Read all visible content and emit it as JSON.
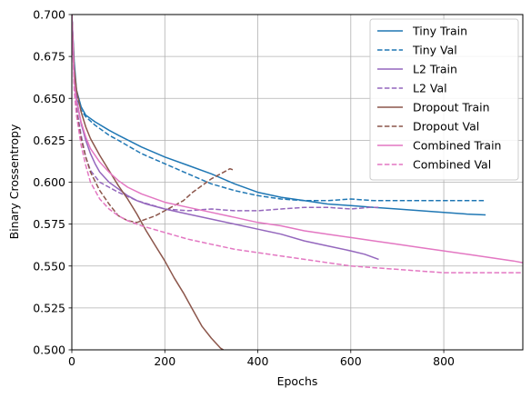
{
  "chart_data": {
    "type": "line",
    "xlabel": "Epochs",
    "ylabel": "Binary Crossentropy",
    "xlim": [
      0,
      970
    ],
    "ylim": [
      0.5,
      0.7
    ],
    "x_ticks": [
      0,
      200,
      400,
      600,
      800
    ],
    "x_tick_labels": [
      "0",
      "200",
      "400",
      "600",
      "800"
    ],
    "y_ticks": [
      0.5,
      0.525,
      0.55,
      0.575,
      0.6,
      0.625,
      0.65,
      0.675,
      0.7
    ],
    "y_tick_labels": [
      "0.500",
      "0.525",
      "0.550",
      "0.575",
      "0.600",
      "0.625",
      "0.650",
      "0.675",
      "0.700"
    ],
    "grid": true,
    "legend_position": "top-right",
    "series": [
      {
        "name": "Tiny Train",
        "color": "#1f77b4",
        "dash": "solid",
        "x": [
          0,
          5,
          10,
          20,
          30,
          50,
          80,
          100,
          150,
          200,
          250,
          300,
          350,
          400,
          450,
          500,
          550,
          600,
          650,
          700,
          750,
          800,
          850,
          890
        ],
        "y": [
          0.7,
          0.672,
          0.655,
          0.645,
          0.64,
          0.636,
          0.631,
          0.628,
          0.621,
          0.615,
          0.61,
          0.605,
          0.599,
          0.594,
          0.591,
          0.589,
          0.587,
          0.586,
          0.585,
          0.584,
          0.583,
          0.582,
          0.581,
          0.5805
        ]
      },
      {
        "name": "Tiny Val",
        "color": "#1f77b4",
        "dash": "dashed",
        "x": [
          0,
          5,
          10,
          20,
          30,
          50,
          80,
          100,
          150,
          200,
          250,
          300,
          350,
          400,
          450,
          500,
          550,
          600,
          650,
          700,
          750,
          800,
          850,
          890
        ],
        "y": [
          0.7,
          0.668,
          0.652,
          0.643,
          0.639,
          0.634,
          0.628,
          0.625,
          0.617,
          0.611,
          0.605,
          0.599,
          0.595,
          0.592,
          0.59,
          0.589,
          0.589,
          0.59,
          0.589,
          0.589,
          0.589,
          0.589,
          0.589,
          0.589
        ]
      },
      {
        "name": "L2 Train",
        "color": "#9467bd",
        "dash": "solid",
        "x": [
          0,
          5,
          10,
          20,
          30,
          40,
          50,
          60,
          80,
          100,
          120,
          140,
          160,
          200,
          250,
          300,
          350,
          400,
          450,
          500,
          550,
          600,
          630,
          660
        ],
        "y": [
          0.7,
          0.665,
          0.65,
          0.635,
          0.625,
          0.617,
          0.611,
          0.606,
          0.6,
          0.596,
          0.592,
          0.589,
          0.587,
          0.584,
          0.581,
          0.578,
          0.575,
          0.572,
          0.569,
          0.565,
          0.562,
          0.559,
          0.557,
          0.554
        ]
      },
      {
        "name": "L2 Val",
        "color": "#9467bd",
        "dash": "dashed",
        "x": [
          0,
          5,
          10,
          20,
          30,
          40,
          60,
          80,
          100,
          140,
          200,
          250,
          300,
          350,
          400,
          450,
          500,
          550,
          600,
          640,
          660
        ],
        "y": [
          0.7,
          0.66,
          0.645,
          0.628,
          0.615,
          0.607,
          0.6,
          0.597,
          0.594,
          0.589,
          0.584,
          0.583,
          0.584,
          0.583,
          0.583,
          0.584,
          0.585,
          0.585,
          0.584,
          0.585,
          0.585
        ]
      },
      {
        "name": "Dropout Train",
        "color": "#8c564b",
        "dash": "solid",
        "x": [
          0,
          5,
          10,
          20,
          30,
          40,
          60,
          80,
          100,
          120,
          140,
          160,
          180,
          200,
          220,
          240,
          260,
          280,
          300,
          320,
          326
        ],
        "y": [
          0.7,
          0.668,
          0.655,
          0.642,
          0.633,
          0.626,
          0.616,
          0.607,
          0.598,
          0.59,
          0.581,
          0.571,
          0.562,
          0.553,
          0.543,
          0.534,
          0.524,
          0.514,
          0.507,
          0.501,
          0.5
        ]
      },
      {
        "name": "Dropout Val",
        "color": "#8c564b",
        "dash": "dashed",
        "x": [
          0,
          5,
          10,
          20,
          30,
          40,
          60,
          80,
          100,
          120,
          140,
          160,
          180,
          200,
          220,
          240,
          260,
          280,
          300,
          320,
          340,
          350
        ],
        "y": [
          0.7,
          0.66,
          0.642,
          0.626,
          0.615,
          0.606,
          0.595,
          0.587,
          0.58,
          0.577,
          0.576,
          0.578,
          0.58,
          0.583,
          0.586,
          0.589,
          0.594,
          0.598,
          0.602,
          0.605,
          0.608,
          0.607
        ]
      },
      {
        "name": "Combined Train",
        "color": "#e377c2",
        "dash": "solid",
        "x": [
          0,
          5,
          10,
          20,
          30,
          40,
          60,
          80,
          100,
          120,
          150,
          200,
          250,
          300,
          350,
          400,
          450,
          500,
          550,
          600,
          650,
          700,
          750,
          800,
          850,
          900,
          950,
          970
        ],
        "y": [
          0.7,
          0.66,
          0.648,
          0.636,
          0.627,
          0.62,
          0.612,
          0.606,
          0.601,
          0.597,
          0.593,
          0.588,
          0.585,
          0.582,
          0.579,
          0.576,
          0.574,
          0.571,
          0.569,
          0.567,
          0.565,
          0.563,
          0.561,
          0.559,
          0.557,
          0.555,
          0.553,
          0.552
        ]
      },
      {
        "name": "Combined Val",
        "color": "#e377c2",
        "dash": "dashed",
        "x": [
          0,
          5,
          10,
          20,
          30,
          40,
          60,
          80,
          100,
          120,
          150,
          200,
          250,
          300,
          350,
          400,
          450,
          500,
          550,
          600,
          650,
          700,
          750,
          800,
          850,
          900,
          950,
          970
        ],
        "y": [
          0.7,
          0.655,
          0.64,
          0.622,
          0.61,
          0.6,
          0.59,
          0.584,
          0.58,
          0.577,
          0.574,
          0.57,
          0.566,
          0.563,
          0.56,
          0.558,
          0.556,
          0.554,
          0.552,
          0.55,
          0.549,
          0.548,
          0.547,
          0.546,
          0.546,
          0.546,
          0.546,
          0.546
        ]
      }
    ]
  }
}
